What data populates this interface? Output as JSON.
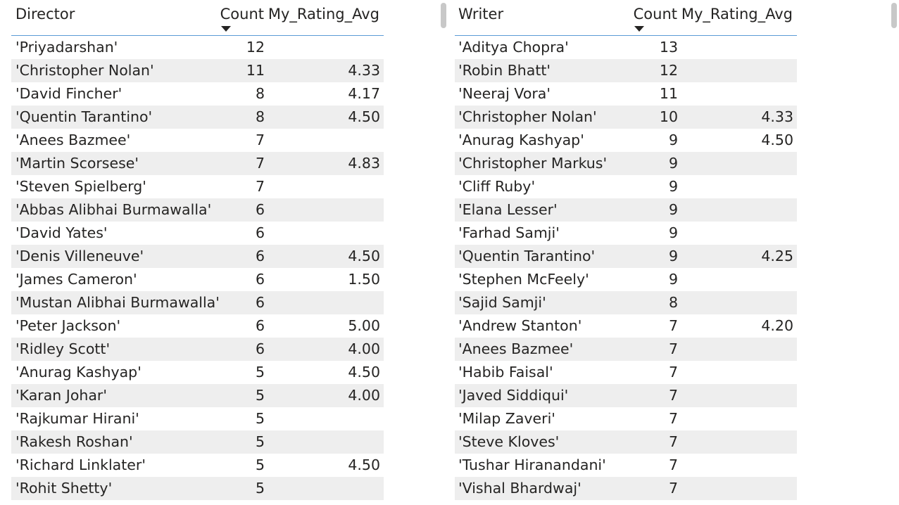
{
  "director_table": {
    "headers": {
      "name": "Director",
      "count": "Count",
      "rating": "My_Rating_Avg"
    },
    "rows": [
      {
        "name": "'Priyadarshan'",
        "count": "12",
        "rating": ""
      },
      {
        "name": "'Christopher Nolan'",
        "count": "11",
        "rating": "4.33"
      },
      {
        "name": "'David Fincher'",
        "count": "8",
        "rating": "4.17"
      },
      {
        "name": "'Quentin Tarantino'",
        "count": "8",
        "rating": "4.50"
      },
      {
        "name": "'Anees Bazmee'",
        "count": "7",
        "rating": ""
      },
      {
        "name": "'Martin Scorsese'",
        "count": "7",
        "rating": "4.83"
      },
      {
        "name": "'Steven Spielberg'",
        "count": "7",
        "rating": ""
      },
      {
        "name": "'Abbas Alibhai Burmawalla'",
        "count": "6",
        "rating": ""
      },
      {
        "name": "'David Yates'",
        "count": "6",
        "rating": ""
      },
      {
        "name": "'Denis Villeneuve'",
        "count": "6",
        "rating": "4.50"
      },
      {
        "name": "'James Cameron'",
        "count": "6",
        "rating": "1.50"
      },
      {
        "name": "'Mustan Alibhai Burmawalla'",
        "count": "6",
        "rating": ""
      },
      {
        "name": "'Peter Jackson'",
        "count": "6",
        "rating": "5.00"
      },
      {
        "name": "'Ridley Scott'",
        "count": "6",
        "rating": "4.00"
      },
      {
        "name": "'Anurag Kashyap'",
        "count": "5",
        "rating": "4.50"
      },
      {
        "name": "'Karan Johar'",
        "count": "5",
        "rating": "4.00"
      },
      {
        "name": "'Rajkumar Hirani'",
        "count": "5",
        "rating": ""
      },
      {
        "name": "'Rakesh Roshan'",
        "count": "5",
        "rating": ""
      },
      {
        "name": "'Richard Linklater'",
        "count": "5",
        "rating": "4.50"
      },
      {
        "name": "'Rohit Shetty'",
        "count": "5",
        "rating": ""
      }
    ]
  },
  "writer_table": {
    "headers": {
      "name": "Writer",
      "count": "Count",
      "rating": "My_Rating_Avg"
    },
    "rows": [
      {
        "name": "'Aditya Chopra'",
        "count": "13",
        "rating": ""
      },
      {
        "name": "'Robin Bhatt'",
        "count": "12",
        "rating": ""
      },
      {
        "name": "'Neeraj Vora'",
        "count": "11",
        "rating": ""
      },
      {
        "name": "'Christopher Nolan'",
        "count": "10",
        "rating": "4.33"
      },
      {
        "name": "'Anurag Kashyap'",
        "count": "9",
        "rating": "4.50"
      },
      {
        "name": "'Christopher Markus'",
        "count": "9",
        "rating": ""
      },
      {
        "name": "'Cliff Ruby'",
        "count": "9",
        "rating": ""
      },
      {
        "name": "'Elana Lesser'",
        "count": "9",
        "rating": ""
      },
      {
        "name": "'Farhad Samji'",
        "count": "9",
        "rating": ""
      },
      {
        "name": "'Quentin Tarantino'",
        "count": "9",
        "rating": "4.25"
      },
      {
        "name": "'Stephen McFeely'",
        "count": "9",
        "rating": ""
      },
      {
        "name": "'Sajid Samji'",
        "count": "8",
        "rating": ""
      },
      {
        "name": "'Andrew Stanton'",
        "count": "7",
        "rating": "4.20"
      },
      {
        "name": "'Anees Bazmee'",
        "count": "7",
        "rating": ""
      },
      {
        "name": "'Habib Faisal'",
        "count": "7",
        "rating": ""
      },
      {
        "name": "'Javed Siddiqui'",
        "count": "7",
        "rating": ""
      },
      {
        "name": "'Milap Zaveri'",
        "count": "7",
        "rating": ""
      },
      {
        "name": "'Steve Kloves'",
        "count": "7",
        "rating": ""
      },
      {
        "name": "'Tushar Hiranandani'",
        "count": "7",
        "rating": ""
      },
      {
        "name": "'Vishal Bhardwaj'",
        "count": "7",
        "rating": ""
      }
    ]
  },
  "icons": {
    "sort": "sort-descending-icon"
  },
  "colors": {
    "header_rule": "#5b9bd5",
    "alt_row": "#eeeeee",
    "scrollbar": "#c8c8c8"
  }
}
